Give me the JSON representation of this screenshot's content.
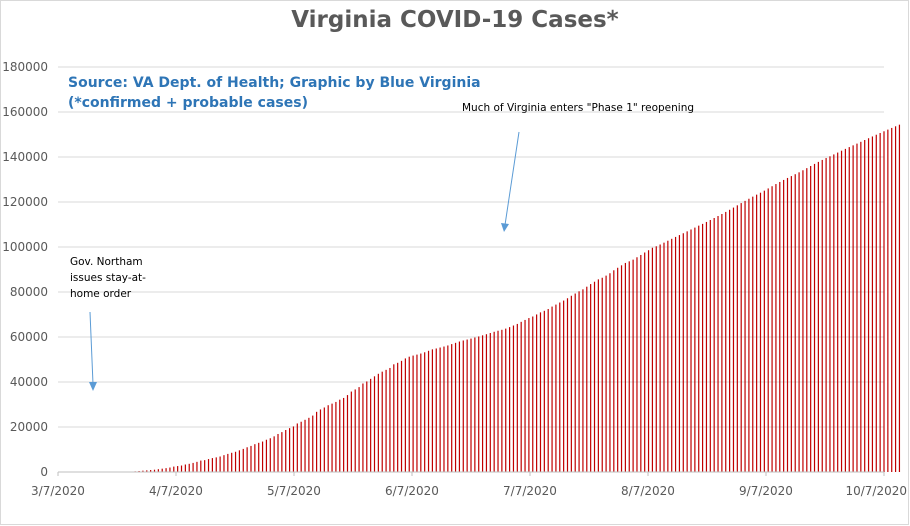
{
  "chart_data": {
    "type": "bar",
    "title": "Virginia COVID-19 Cases*",
    "source_lines": [
      "Source: VA Dept. of Health; Graphic by Blue Virginia",
      "(*confirmed + probable cases)"
    ],
    "ylim": [
      0,
      180000
    ],
    "y_ticks": [
      0,
      20000,
      40000,
      60000,
      80000,
      100000,
      120000,
      140000,
      160000,
      180000
    ],
    "x_range": [
      "2020-03-07",
      "2020-10-07"
    ],
    "x_tick_labels": [
      "3/7/2020",
      "4/7/2020",
      "5/7/2020",
      "6/7/2020",
      "7/7/2020",
      "8/7/2020",
      "9/7/2020",
      "10/7/2020"
    ],
    "bar_color": "#c00000",
    "grid": true,
    "annotations": [
      {
        "lines": [
          "Gov. Northam",
          "issues stay-at-",
          "home order"
        ],
        "date": "2020-03-30"
      },
      {
        "lines": [
          "Much of Virginia enters \"Phase 1\" reopening"
        ],
        "date": "2020-05-15"
      }
    ],
    "series": [
      {
        "start": "2020-03-07",
        "values": [
          0,
          0,
          0,
          0,
          0,
          0,
          0,
          0,
          0,
          0,
          0,
          0,
          0,
          0,
          0,
          0,
          0,
          0,
          0,
          0,
          300,
          450,
          600,
          740,
          890,
          1020,
          1250,
          1480,
          1710,
          1990,
          2410,
          2640,
          2880,
          3330,
          3640,
          4040,
          4510,
          5080,
          5270,
          5750,
          6180,
          6500,
          6890,
          7490,
          8050,
          8540,
          8990,
          9630,
          10270,
          10990,
          11590,
          12370,
          12970,
          13540,
          14340,
          15000,
          15850,
          16900,
          17730,
          18670,
          19490,
          20260,
          21570,
          22340,
          23200,
          24080,
          25070,
          26740,
          27810,
          28670,
          29680,
          30390,
          31140,
          32150,
          32910,
          34190,
          35750,
          36690,
          37730,
          39340,
          40250,
          41400,
          42530,
          43650,
          44600,
          45400,
          46240,
          47860,
          48530,
          49400,
          50480,
          51250,
          51740,
          52180,
          52650,
          53210,
          53870,
          54510,
          54900,
          55330,
          55770,
          56240,
          56850,
          57400,
          57990,
          58460,
          58870,
          59300,
          59780,
          60250,
          60740,
          61240,
          61780,
          62320,
          62790,
          63200,
          63730,
          64390,
          65110,
          65810,
          66740,
          67580,
          68420,
          69110,
          70020,
          70940,
          71640,
          72440,
          73520,
          74410,
          75320,
          76190,
          77220,
          78330,
          79330,
          80320,
          81190,
          82360,
          83530,
          84570,
          85620,
          86340,
          87280,
          88340,
          89650,
          90770,
          91860,
          92910,
          93630,
          94380,
          95440,
          96460,
          97560,
          98570,
          99670,
          100330,
          101110,
          101930,
          102790,
          103640,
          104480,
          105300,
          106110,
          106950,
          107790,
          108620,
          109500,
          110280,
          111140,
          112000,
          112890,
          113770,
          114670,
          115590,
          116540,
          117520,
          118520,
          119520,
          120500,
          121450,
          122380,
          123270,
          124130,
          125040,
          126030,
          127010,
          127980,
          128900,
          129810,
          130690,
          131520,
          132350,
          133190,
          134100,
          135050,
          136000,
          136930,
          137830,
          138700,
          139540,
          140320,
          141150,
          141970,
          142800,
          143610,
          144400,
          145180,
          145950,
          146750,
          147550,
          148340,
          149130,
          149900,
          150670,
          151430,
          152180,
          152920,
          153650,
          154370
        ]
      }
    ]
  }
}
